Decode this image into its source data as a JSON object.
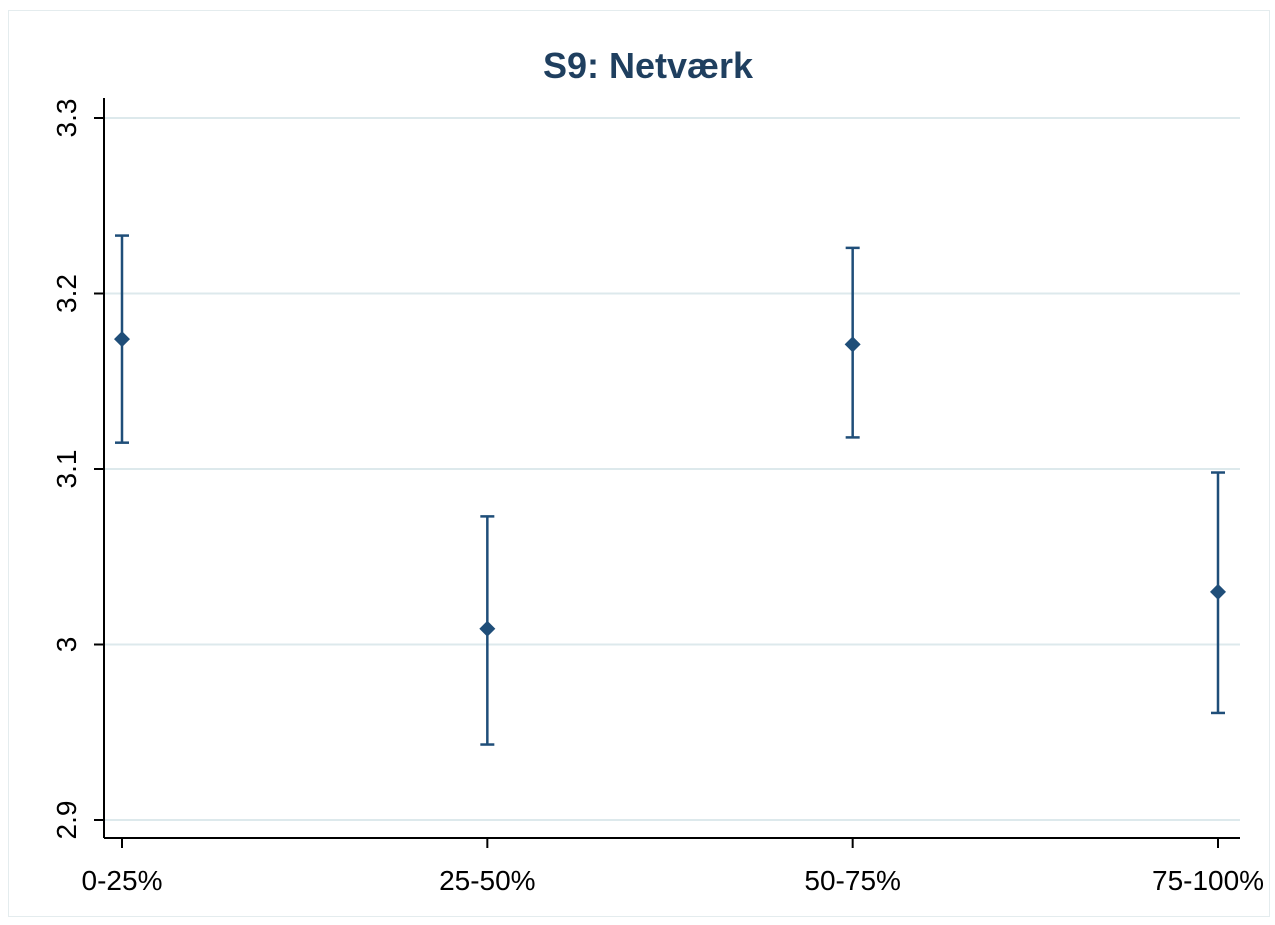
{
  "chart_data": {
    "type": "scatter",
    "title": "S9: Netværk",
    "xlabel": "",
    "ylabel": "",
    "categories": [
      "0-25%",
      "25-50%",
      "50-75%",
      "75-100%"
    ],
    "series": [
      {
        "values": [
          3.174,
          3.009,
          3.171,
          3.03
        ],
        "ci_lower": [
          3.115,
          2.943,
          3.118,
          2.961
        ],
        "ci_upper": [
          3.233,
          3.073,
          3.226,
          3.098
        ]
      }
    ],
    "ylim": [
      2.9,
      3.3
    ],
    "yticks": [
      "2.9",
      "3",
      "3.1",
      "3.2",
      "3.3"
    ],
    "grid": true,
    "marker": "diamond",
    "colors": {
      "series": "#1f4e79",
      "grid": "#dde9ec",
      "axis": "#000000",
      "title": "#1f3f5f"
    }
  }
}
